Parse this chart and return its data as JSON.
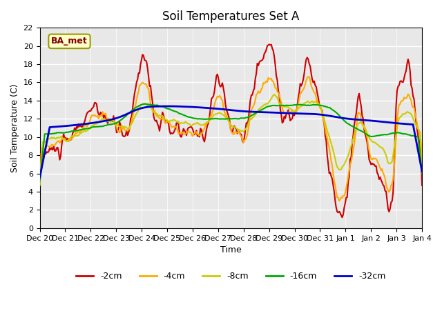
{
  "title": "Soil Temperatures Set A",
  "xlabel": "Time",
  "ylabel": "Soil Temperature (C)",
  "ylim": [
    0,
    22
  ],
  "yticks": [
    0,
    2,
    4,
    6,
    8,
    10,
    12,
    14,
    16,
    18,
    20,
    22
  ],
  "bg_color": "#e8e8e8",
  "legend_label": "BA_met",
  "series_labels": [
    "-2cm",
    "-4cm",
    "-8cm",
    "-16cm",
    "-32cm"
  ],
  "series_colors": [
    "#cc0000",
    "#ffaa00",
    "#cccc00",
    "#00aa00",
    "#0000cc"
  ],
  "series_linewidths": [
    1.5,
    1.5,
    1.5,
    1.5,
    2.0
  ],
  "x_tick_labels": [
    "Dec 20",
    "Dec 21",
    "Dec 22",
    "Dec 23",
    "Dec 24",
    "Dec 25",
    "Dec 26",
    "Dec 27",
    "Dec 28",
    "Dec 29",
    "Dec 30",
    "Dec 31",
    "Jan 1",
    "Jan 2",
    "Jan 3",
    "Jan 4"
  ],
  "n_days": 16,
  "points_per_day": 24
}
